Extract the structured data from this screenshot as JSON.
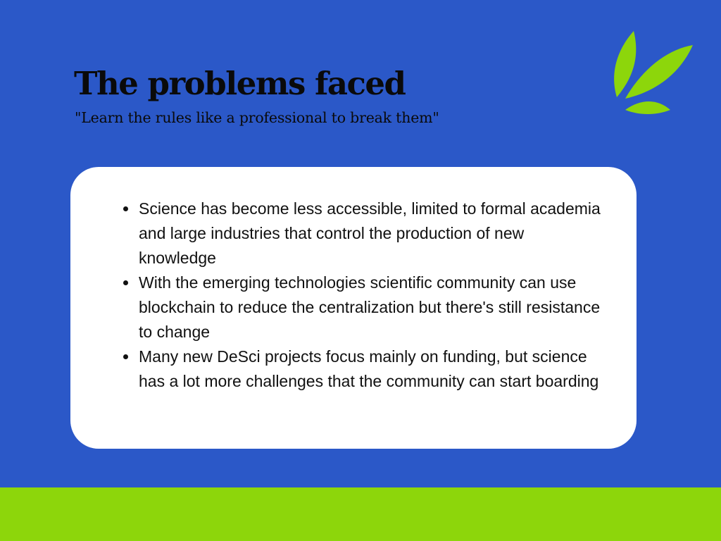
{
  "slide": {
    "title": "The problems faced",
    "subtitle": "\"Learn the rules like a professional to break them\"",
    "bullets": [
      {
        "text": "Science has become less accessible, limited to formal academia and large industries that control the production of new knowledge"
      },
      {
        "text": "With the emerging technologies scientific community can use blockchain to reduce the centralization but there's still resistance to change"
      },
      {
        "text": "Many new DeSci projects focus mainly on funding, but science has a lot more challenges that the community can start boarding"
      }
    ]
  },
  "colors": {
    "background": "#2b58c8",
    "accent": "#8dd60b",
    "card": "#ffffff",
    "text": "#0a0a0a"
  },
  "icons": {
    "decoration": "leaf-logo-icon"
  }
}
